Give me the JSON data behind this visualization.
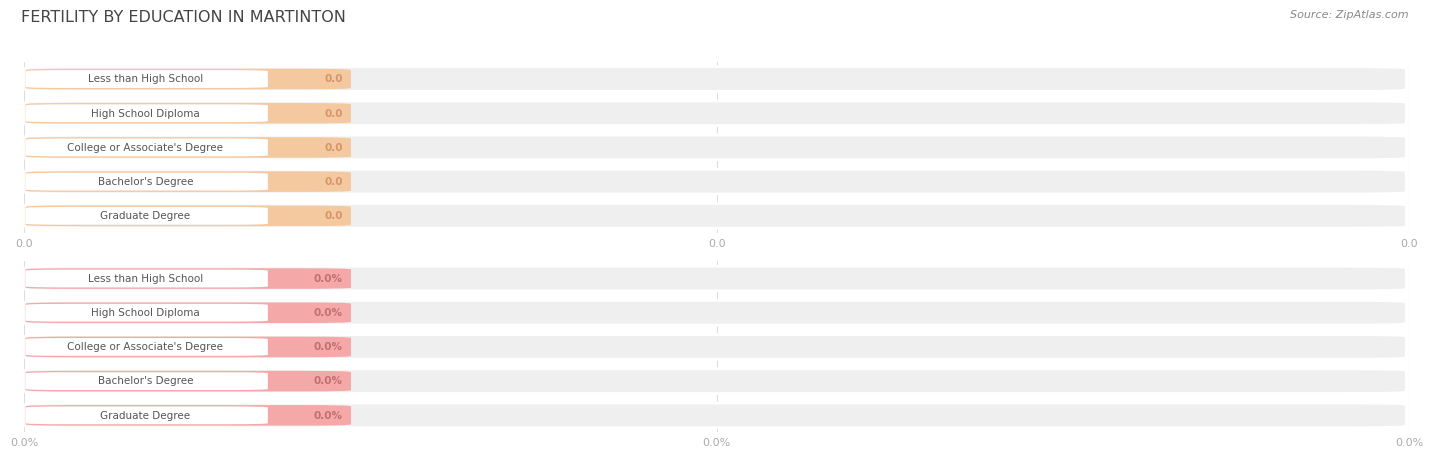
{
  "title": "FERTILITY BY EDUCATION IN MARTINTON",
  "source": "Source: ZipAtlas.com",
  "categories": [
    "Less than High School",
    "High School Diploma",
    "College or Associate's Degree",
    "Bachelor's Degree",
    "Graduate Degree"
  ],
  "values_top": [
    0.0,
    0.0,
    0.0,
    0.0,
    0.0
  ],
  "values_bottom": [
    0.0,
    0.0,
    0.0,
    0.0,
    0.0
  ],
  "bar_color_top": "#f5c9a0",
  "bar_color_bottom": "#f5a8a8",
  "bar_bg_color": "#efefef",
  "bar_bg_edge_color": "#ffffff",
  "title_color": "#444444",
  "source_color": "#888888",
  "label_text_color": "#555555",
  "value_color_top": "#d4956a",
  "value_color_bottom": "#c07070",
  "background_color": "#ffffff",
  "grid_color": "#dddddd",
  "tick_label_color": "#aaaaaa",
  "xtick_labels_top": [
    "0.0",
    "0.0",
    "0.0"
  ],
  "xtick_labels_bottom": [
    "0.0%",
    "0.0%",
    "0.0%"
  ],
  "value_labels_top": [
    "0.0",
    "0.0",
    "0.0",
    "0.0",
    "0.0"
  ],
  "value_labels_bottom": [
    "0.0%",
    "0.0%",
    "0.0%",
    "0.0%",
    "0.0%"
  ]
}
